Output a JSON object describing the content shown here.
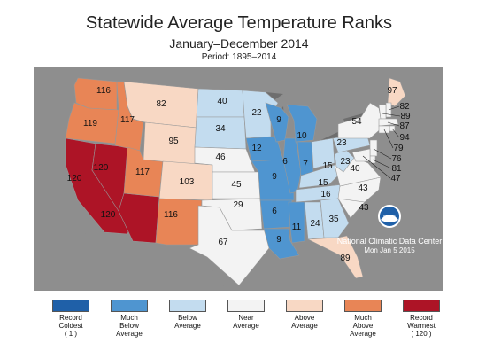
{
  "title": "Statewide Average Temperature Ranks",
  "subtitle": "January–December 2014",
  "period": "Period: 1895–2014",
  "agency": "National Climatic Data Center",
  "date": "Mon Jan  5 2015",
  "logo_text": "NOAA",
  "colors": {
    "record_coldest": "#1f60a8",
    "much_below": "#4f95d0",
    "below": "#c3dcef",
    "near": "#f3f3f3",
    "above": "#f8d8c4",
    "much_above": "#e88556",
    "record_warmest": "#ad1426",
    "background": "#8e8e8e"
  },
  "legend": [
    {
      "label": "Record\nColdest\n( 1 )",
      "color_key": "record_coldest"
    },
    {
      "label": "Much\nBelow\nAverage",
      "color_key": "much_below"
    },
    {
      "label": "Below\nAverage",
      "color_key": "below"
    },
    {
      "label": "Near\nAverage",
      "color_key": "near"
    },
    {
      "label": "Above\nAverage",
      "color_key": "above"
    },
    {
      "label": "Much\nAbove\nAverage",
      "color_key": "much_above"
    },
    {
      "label": "Record\nWarmest\n( 120 )",
      "color_key": "record_warmest"
    }
  ],
  "states": [
    {
      "state": "WA",
      "rank": "116",
      "category": "much_above"
    },
    {
      "state": "OR",
      "rank": "119",
      "category": "much_above"
    },
    {
      "state": "CA",
      "rank": "120",
      "category": "record_warmest"
    },
    {
      "state": "NV",
      "rank": "120",
      "category": "record_warmest"
    },
    {
      "state": "AZ",
      "rank": "120",
      "category": "record_warmest"
    },
    {
      "state": "ID",
      "rank": "117",
      "category": "much_above"
    },
    {
      "state": "UT",
      "rank": "117",
      "category": "much_above"
    },
    {
      "state": "MT",
      "rank": "82",
      "category": "above"
    },
    {
      "state": "WY",
      "rank": "95",
      "category": "above"
    },
    {
      "state": "CO",
      "rank": "103",
      "category": "above"
    },
    {
      "state": "NM",
      "rank": "116",
      "category": "much_above"
    },
    {
      "state": "ND",
      "rank": "40",
      "category": "below"
    },
    {
      "state": "SD",
      "rank": "34",
      "category": "below"
    },
    {
      "state": "NE",
      "rank": "46",
      "category": "near"
    },
    {
      "state": "KS",
      "rank": "45",
      "category": "near"
    },
    {
      "state": "OK",
      "rank": "29",
      "category": "near"
    },
    {
      "state": "TX",
      "rank": "67",
      "category": "near"
    },
    {
      "state": "MN",
      "rank": "22",
      "category": "below"
    },
    {
      "state": "IA",
      "rank": "12",
      "category": "much_below"
    },
    {
      "state": "MO",
      "rank": "9",
      "category": "much_below"
    },
    {
      "state": "AR",
      "rank": "6",
      "category": "much_below"
    },
    {
      "state": "LA",
      "rank": "9",
      "category": "much_below"
    },
    {
      "state": "WI",
      "rank": "9",
      "category": "much_below"
    },
    {
      "state": "IL",
      "rank": "6",
      "category": "much_below"
    },
    {
      "state": "MI",
      "rank": "10",
      "category": "much_below"
    },
    {
      "state": "IN",
      "rank": "7",
      "category": "much_below"
    },
    {
      "state": "MS",
      "rank": "11",
      "category": "much_below"
    },
    {
      "state": "OH",
      "rank": "15",
      "category": "below"
    },
    {
      "state": "KY",
      "rank": "15",
      "category": "below"
    },
    {
      "state": "TN",
      "rank": "16",
      "category": "below"
    },
    {
      "state": "AL",
      "rank": "24",
      "category": "below"
    },
    {
      "state": "GA",
      "rank": "35",
      "category": "below"
    },
    {
      "state": "FL",
      "rank": "89",
      "category": "above"
    },
    {
      "state": "SC",
      "rank": "43",
      "category": "near"
    },
    {
      "state": "NC",
      "rank": "43",
      "category": "near"
    },
    {
      "state": "VA",
      "rank": "40",
      "category": "near"
    },
    {
      "state": "WV",
      "rank": "23",
      "category": "below"
    },
    {
      "state": "PA",
      "rank": "23",
      "category": "below"
    },
    {
      "state": "NY",
      "rank": "54",
      "category": "near"
    },
    {
      "state": "ME",
      "rank": "97",
      "category": "above"
    },
    {
      "state": "NH",
      "rank": "82",
      "category": "near"
    },
    {
      "state": "VT",
      "rank": "89",
      "category": "near"
    },
    {
      "state": "MA",
      "rank": "87",
      "category": "near"
    },
    {
      "state": "RI",
      "rank": "94",
      "category": "near"
    },
    {
      "state": "CT",
      "rank": "79",
      "category": "near"
    },
    {
      "state": "NJ",
      "rank": "76",
      "category": "near"
    },
    {
      "state": "DE",
      "rank": "81",
      "category": "near"
    },
    {
      "state": "MD",
      "rank": "47",
      "category": "near"
    }
  ]
}
